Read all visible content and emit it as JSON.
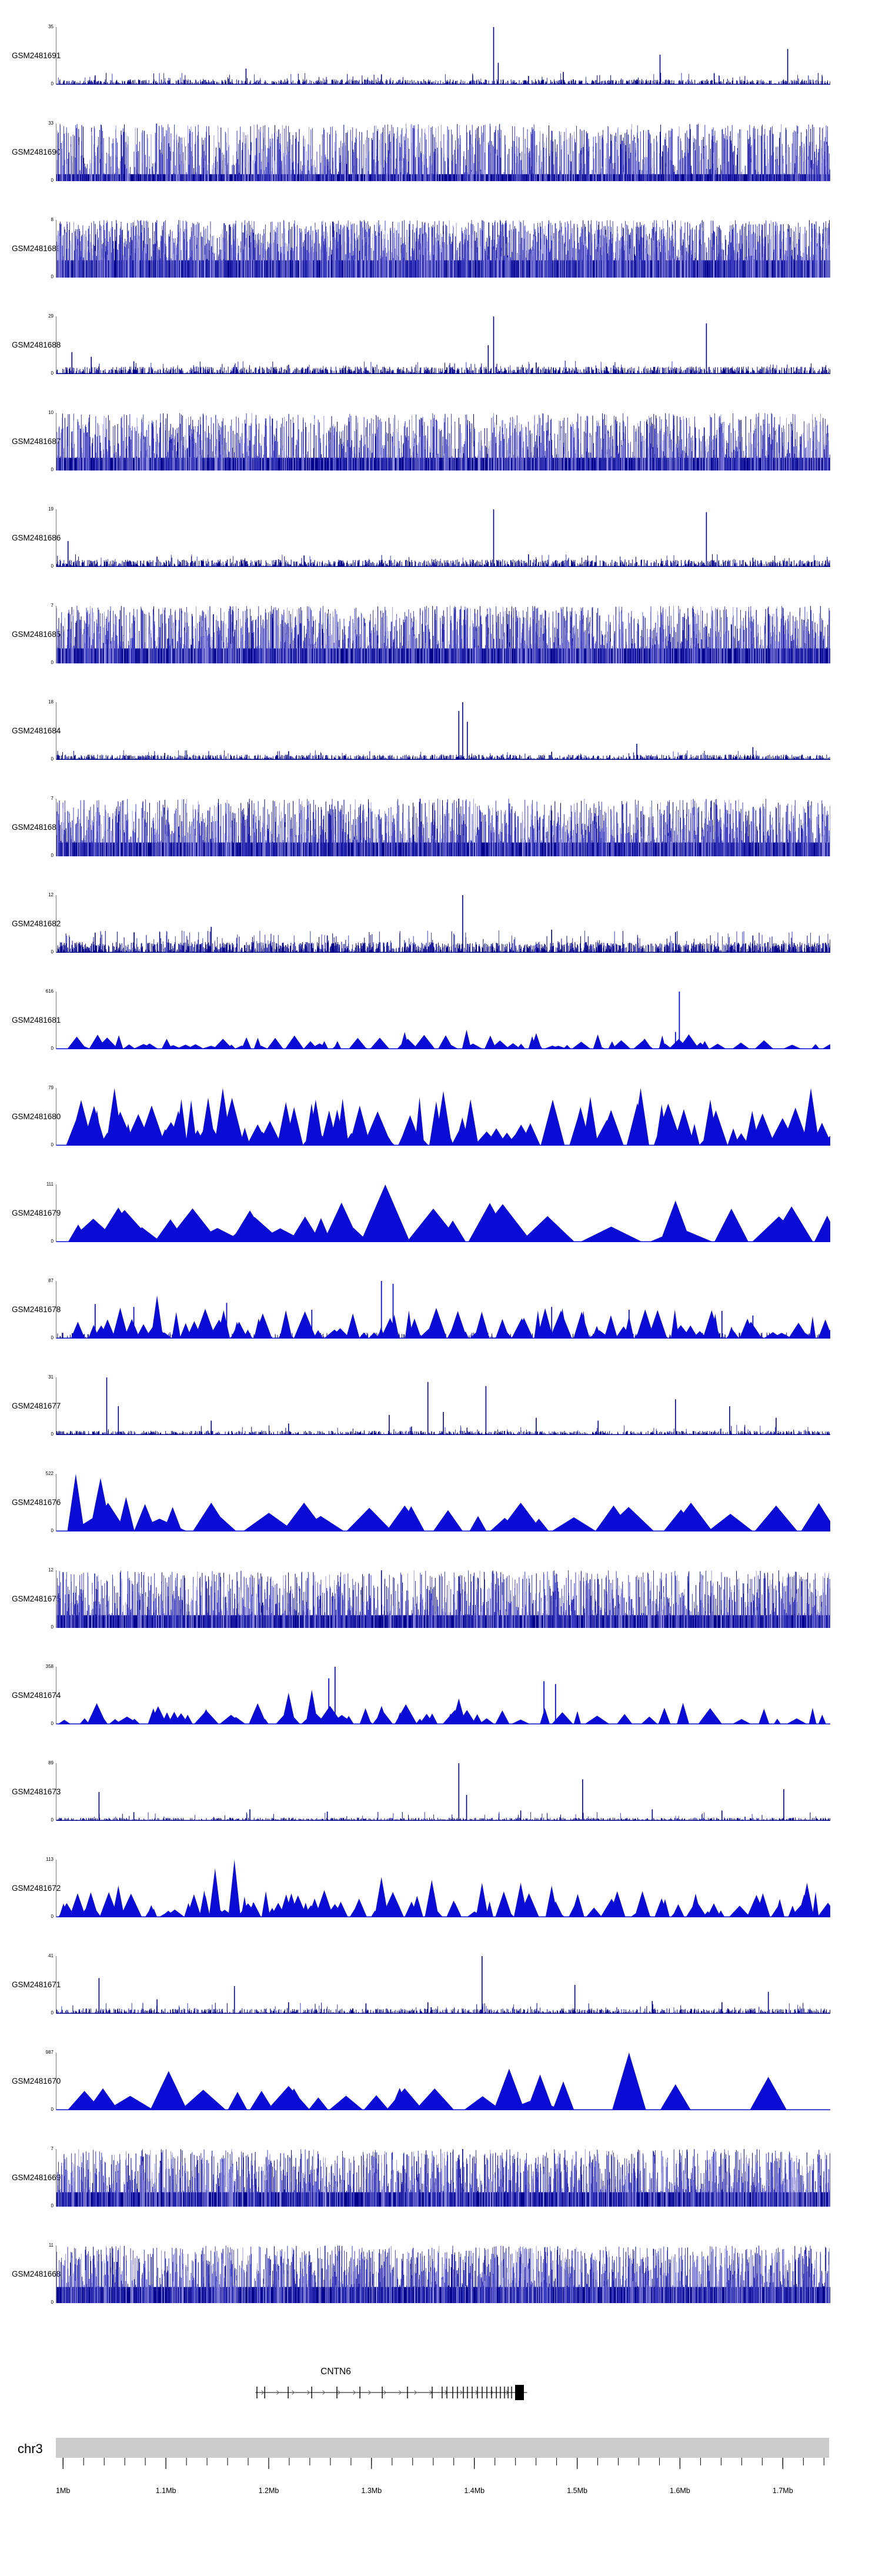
{
  "chart_data": {
    "type": "area",
    "title": "",
    "y_axis_zero": "0",
    "colors": {
      "bar_dark": "#00008b",
      "bar_mid": "#3c3cc0",
      "bar_light": "#9a9ae0",
      "spike": "#000089",
      "triangle": "#0b0bd6",
      "gene": "#000000",
      "ruler_bar": "#cbcbcb",
      "text": "#000000"
    },
    "tracks": [
      {
        "label": "GSM2481691",
        "ymax": "35",
        "style": "spikes",
        "seed": 101,
        "n": 1100,
        "base": 0.05,
        "midn": 90,
        "mid": 0.16,
        "spikes": [
          [
            0.565,
            1.0
          ],
          [
            0.571,
            0.38
          ],
          [
            0.655,
            0.22
          ],
          [
            0.78,
            0.52
          ],
          [
            0.945,
            0.62
          ],
          [
            0.245,
            0.28
          ],
          [
            0.05,
            0.16
          ],
          [
            0.85,
            0.2
          ],
          [
            0.42,
            0.18
          ],
          [
            0.61,
            0.15
          ]
        ]
      },
      {
        "label": "GSM2481690",
        "ymax": "33",
        "style": "bars",
        "seed": 102,
        "n": 1500,
        "solid": 0.12,
        "hexp": 1.0
      },
      {
        "label": "GSM2481689",
        "ymax": "8",
        "style": "bars",
        "seed": 103,
        "n": 2200,
        "solid": 0.3,
        "hexp": 1.0
      },
      {
        "label": "GSM2481688",
        "ymax": "29",
        "style": "spikes",
        "seed": 104,
        "n": 1200,
        "base": 0.07,
        "midn": 110,
        "mid": 0.18,
        "spikes": [
          [
            0.565,
            1.0
          ],
          [
            0.558,
            0.5
          ],
          [
            0.84,
            0.88
          ],
          [
            0.02,
            0.38
          ],
          [
            0.045,
            0.3
          ],
          [
            0.1,
            0.22
          ],
          [
            0.62,
            0.2
          ],
          [
            0.3,
            0.16
          ],
          [
            0.72,
            0.15
          ]
        ]
      },
      {
        "label": "GSM2481687",
        "ymax": "10",
        "style": "bars",
        "seed": 105,
        "n": 1700,
        "solid": 0.22,
        "hexp": 1.2
      },
      {
        "label": "GSM2481686",
        "ymax": "19",
        "style": "spikes",
        "seed": 106,
        "n": 1150,
        "base": 0.07,
        "midn": 100,
        "mid": 0.17,
        "spikes": [
          [
            0.565,
            1.0
          ],
          [
            0.84,
            0.95
          ],
          [
            0.015,
            0.45
          ],
          [
            0.32,
            0.2
          ],
          [
            0.61,
            0.22
          ],
          [
            0.13,
            0.18
          ],
          [
            0.9,
            0.16
          ]
        ]
      },
      {
        "label": "GSM2481685",
        "ymax": "7",
        "style": "bars",
        "seed": 107,
        "n": 1800,
        "solid": 0.26,
        "hexp": 1.1
      },
      {
        "label": "GSM2481684",
        "ymax": "18",
        "style": "spikes",
        "seed": 108,
        "n": 1100,
        "base": 0.05,
        "midn": 80,
        "mid": 0.13,
        "spikes": [
          [
            0.525,
            1.0
          ],
          [
            0.52,
            0.85
          ],
          [
            0.531,
            0.66
          ],
          [
            0.75,
            0.28
          ],
          [
            0.9,
            0.22
          ],
          [
            0.3,
            0.15
          ],
          [
            0.14,
            0.12
          ],
          [
            0.64,
            0.14
          ]
        ]
      },
      {
        "label": "GSM2481683",
        "ymax": "7",
        "style": "bars",
        "seed": 109,
        "n": 1700,
        "solid": 0.24,
        "hexp": 1.2,
        "spikes": [
          [
            0.47,
            1.0
          ],
          [
            0.52,
            1.0
          ]
        ]
      },
      {
        "label": "GSM2481682",
        "ymax": "12",
        "style": "spikes",
        "seed": 110,
        "n": 1500,
        "base": 0.1,
        "midn": 200,
        "mid": 0.3,
        "spikes": [
          [
            0.525,
            1.0
          ],
          [
            0.2,
            0.45
          ],
          [
            0.64,
            0.4
          ],
          [
            0.8,
            0.36
          ],
          [
            0.9,
            0.3
          ],
          [
            0.05,
            0.35
          ],
          [
            0.35,
            0.3
          ]
        ]
      },
      {
        "label": "GSM2481681",
        "ymax": "616",
        "style": "tri",
        "seed": 111,
        "n": 70,
        "wavg": 0.007,
        "hmin": 0.06,
        "hmax": 0.26,
        "peaks": [
          [
            0.53,
            0.006,
            0.34
          ],
          [
            0.62,
            0.007,
            0.28
          ],
          [
            0.45,
            0.006,
            0.3
          ]
        ],
        "thin_spikes": [
          [
            0.805,
            1.0
          ],
          [
            0.8,
            0.3
          ]
        ]
      },
      {
        "label": "GSM2481680",
        "ymax": "79",
        "style": "tri",
        "seed": 112,
        "n": 85,
        "wavg": 0.009,
        "hmin": 0.18,
        "hmax": 0.85,
        "peaks": [
          [
            0.075,
            0.011,
            1.0
          ],
          [
            0.215,
            0.011,
            1.0
          ],
          [
            0.335,
            0.01,
            0.8
          ],
          [
            0.5,
            0.011,
            0.95
          ],
          [
            0.69,
            0.01,
            0.85
          ],
          [
            0.755,
            0.011,
            1.0
          ],
          [
            0.845,
            0.01,
            0.8
          ],
          [
            0.975,
            0.011,
            1.0
          ]
        ]
      },
      {
        "label": "GSM2481679",
        "ymax": "111",
        "style": "tri",
        "seed": 113,
        "n": 26,
        "wavg": 0.02,
        "hmin": 0.22,
        "hmax": 0.7,
        "peaks": [
          [
            0.425,
            0.032,
            1.0
          ],
          [
            0.08,
            0.028,
            0.6
          ],
          [
            0.56,
            0.028,
            0.68
          ],
          [
            0.8,
            0.02,
            0.72
          ],
          [
            0.95,
            0.028,
            0.62
          ],
          [
            0.25,
            0.025,
            0.55
          ]
        ]
      },
      {
        "label": "GSM2481678",
        "ymax": "87",
        "style": "tri",
        "seed": 114,
        "n": 80,
        "wavg": 0.007,
        "hmin": 0.1,
        "hmax": 0.55,
        "base": 0.06,
        "peaks": [
          [
            0.13,
            0.008,
            0.75
          ]
        ],
        "thin_spikes": [
          [
            0.42,
            1.0
          ],
          [
            0.435,
            0.95
          ],
          [
            0.05,
            0.6
          ],
          [
            0.1,
            0.55
          ],
          [
            0.22,
            0.62
          ],
          [
            0.33,
            0.5
          ],
          [
            0.64,
            0.55
          ],
          [
            0.74,
            0.5
          ],
          [
            0.86,
            0.48
          ],
          [
            0.9,
            0.4
          ]
        ]
      },
      {
        "label": "GSM2481677",
        "ymax": "31",
        "style": "spikes",
        "seed": 115,
        "n": 1000,
        "base": 0.04,
        "midn": 70,
        "mid": 0.14,
        "spikes": [
          [
            0.065,
            1.0
          ],
          [
            0.08,
            0.5
          ],
          [
            0.48,
            0.92
          ],
          [
            0.555,
            0.85
          ],
          [
            0.5,
            0.4
          ],
          [
            0.8,
            0.62
          ],
          [
            0.87,
            0.5
          ],
          [
            0.93,
            0.3
          ],
          [
            0.2,
            0.25
          ],
          [
            0.3,
            0.2
          ],
          [
            0.62,
            0.3
          ],
          [
            0.7,
            0.25
          ],
          [
            0.43,
            0.35
          ]
        ]
      },
      {
        "label": "GSM2481676",
        "ymax": "522",
        "style": "tri",
        "seed": 116,
        "n": 20,
        "wavg": 0.018,
        "hmin": 0.22,
        "hmax": 0.5,
        "peaks": [
          [
            0.025,
            0.011,
            1.0
          ],
          [
            0.057,
            0.014,
            0.93
          ],
          [
            0.09,
            0.011,
            0.6
          ],
          [
            0.2,
            0.024,
            0.5
          ],
          [
            0.32,
            0.028,
            0.5
          ],
          [
            0.45,
            0.024,
            0.45
          ],
          [
            0.6,
            0.028,
            0.5
          ],
          [
            0.72,
            0.024,
            0.45
          ],
          [
            0.82,
            0.028,
            0.5
          ],
          [
            0.93,
            0.028,
            0.45
          ]
        ]
      },
      {
        "label": "GSM2481675",
        "ymax": "12",
        "style": "bars",
        "seed": 117,
        "n": 1600,
        "solid": 0.22,
        "hexp": 1.3,
        "spikes": [
          [
            0.42,
            1.0
          ],
          [
            0.52,
            0.9
          ],
          [
            0.7,
            0.85
          ]
        ]
      },
      {
        "label": "GSM2481674",
        "ymax": "358",
        "style": "tri",
        "seed": 118,
        "n": 60,
        "wavg": 0.008,
        "hmin": 0.08,
        "hmax": 0.38,
        "peaks": [
          [
            0.3,
            0.009,
            0.55
          ],
          [
            0.33,
            0.008,
            0.6
          ],
          [
            0.52,
            0.009,
            0.45
          ]
        ],
        "thin_spikes": [
          [
            0.36,
            1.0
          ],
          [
            0.352,
            0.8
          ],
          [
            0.63,
            0.75
          ],
          [
            0.645,
            0.7
          ]
        ]
      },
      {
        "label": "GSM2481673",
        "ymax": "89",
        "style": "spikes",
        "seed": 119,
        "n": 900,
        "base": 0.03,
        "midn": 60,
        "mid": 0.12,
        "spikes": [
          [
            0.055,
            0.5
          ],
          [
            0.52,
            1.0
          ],
          [
            0.53,
            0.45
          ],
          [
            0.68,
            0.72
          ],
          [
            0.94,
            0.55
          ],
          [
            0.25,
            0.2
          ],
          [
            0.35,
            0.16
          ],
          [
            0.77,
            0.2
          ],
          [
            0.86,
            0.18
          ],
          [
            0.1,
            0.15
          ],
          [
            0.6,
            0.18
          ]
        ]
      },
      {
        "label": "GSM2481672",
        "ymax": "113",
        "style": "tri",
        "seed": 120,
        "n": 95,
        "wavg": 0.007,
        "hmin": 0.1,
        "hmax": 0.48,
        "peaks": [
          [
            0.23,
            0.008,
            1.0
          ],
          [
            0.205,
            0.008,
            0.85
          ],
          [
            0.42,
            0.009,
            0.7
          ],
          [
            0.485,
            0.009,
            0.65
          ],
          [
            0.55,
            0.008,
            0.6
          ],
          [
            0.6,
            0.009,
            0.6
          ],
          [
            0.64,
            0.008,
            0.55
          ],
          [
            0.97,
            0.009,
            0.6
          ],
          [
            0.08,
            0.008,
            0.55
          ]
        ]
      },
      {
        "label": "GSM2481671",
        "ymax": "41",
        "style": "spikes",
        "seed": 121,
        "n": 950,
        "base": 0.05,
        "midn": 80,
        "mid": 0.15,
        "spikes": [
          [
            0.055,
            0.62
          ],
          [
            0.23,
            0.48
          ],
          [
            0.55,
            1.0
          ],
          [
            0.67,
            0.5
          ],
          [
            0.92,
            0.38
          ],
          [
            0.3,
            0.2
          ],
          [
            0.4,
            0.18
          ],
          [
            0.77,
            0.22
          ],
          [
            0.86,
            0.2
          ],
          [
            0.13,
            0.25
          ],
          [
            0.48,
            0.2
          ]
        ]
      },
      {
        "label": "GSM2481670",
        "ymax": "987",
        "style": "tri",
        "seed": 122,
        "n": 14,
        "wavg": 0.018,
        "hmin": 0.18,
        "hmax": 0.4,
        "peaks": [
          [
            0.06,
            0.02,
            0.38
          ],
          [
            0.145,
            0.024,
            0.68
          ],
          [
            0.3,
            0.028,
            0.42
          ],
          [
            0.45,
            0.024,
            0.38
          ],
          [
            0.585,
            0.02,
            0.72
          ],
          [
            0.625,
            0.017,
            0.62
          ],
          [
            0.655,
            0.014,
            0.5
          ],
          [
            0.74,
            0.022,
            1.0
          ],
          [
            0.8,
            0.02,
            0.45
          ],
          [
            0.92,
            0.024,
            0.58
          ]
        ]
      },
      {
        "label": "GSM2481669",
        "ymax": "7",
        "style": "bars",
        "seed": 123,
        "n": 1700,
        "solid": 0.25,
        "hexp": 1.2,
        "spikes": [
          [
            0.525,
            1.0
          ]
        ]
      },
      {
        "label": "GSM2481668",
        "ymax": "11",
        "style": "bars",
        "seed": 124,
        "n": 1700,
        "solid": 0.28,
        "hexp": 1.1
      }
    ],
    "gene_track": {
      "name": "CNTN6",
      "line_span": [
        0.258,
        0.609
      ],
      "exons": [
        0.2599,
        0.2699,
        0.3002,
        0.3306,
        0.3632,
        0.3929,
        0.4218,
        0.4544,
        0.4863,
        0.4992,
        0.5053,
        0.5129,
        0.519,
        0.5266,
        0.5319,
        0.538,
        0.5448,
        0.5509,
        0.557,
        0.5631,
        0.5692,
        0.5745,
        0.5798,
        0.5844,
        0.589
      ],
      "thick_block": [
        0.5935,
        0.6049
      ],
      "strand": "+"
    },
    "ruler": {
      "chrom": "chr3",
      "start_mb": 0.993,
      "end_mb": 1.745,
      "minor_start_mb": 1.0,
      "minor_end_mb": 1.74,
      "minor_step_mb": 0.02,
      "major_ticks": [
        {
          "value": 1.0,
          "label": "1Mb"
        },
        {
          "value": 1.1,
          "label": "1.1Mb"
        },
        {
          "value": 1.2,
          "label": "1.2Mb"
        },
        {
          "value": 1.3,
          "label": "1.3Mb"
        },
        {
          "value": 1.4,
          "label": "1.4Mb"
        },
        {
          "value": 1.5,
          "label": "1.5Mb"
        },
        {
          "value": 1.6,
          "label": "1.6Mb"
        },
        {
          "value": 1.7,
          "label": "1.7Mb"
        }
      ]
    }
  }
}
